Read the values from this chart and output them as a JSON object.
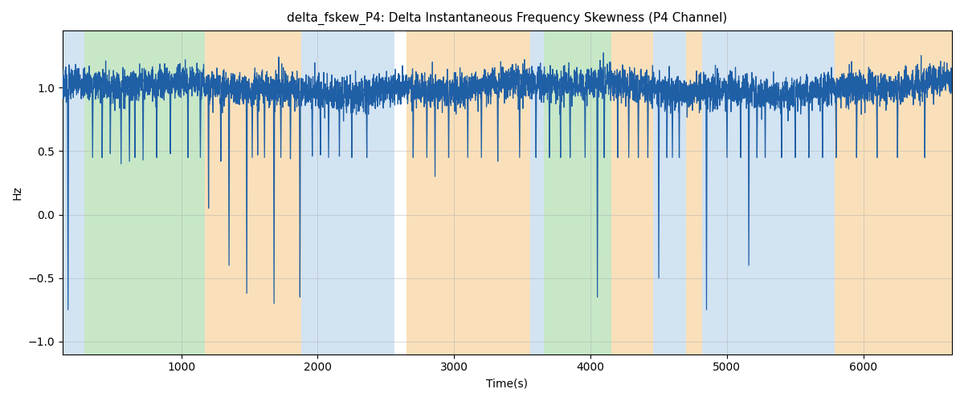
{
  "title": "delta_fskew_P4: Delta Instantaneous Frequency Skewness (P4 Channel)",
  "xlabel": "Time(s)",
  "ylabel": "Hz",
  "xlim": [
    130,
    6650
  ],
  "ylim": [
    -1.1,
    1.45
  ],
  "yticks": [
    -1.0,
    -0.5,
    0.0,
    0.5,
    1.0
  ],
  "xticks": [
    1000,
    2000,
    3000,
    4000,
    5000,
    6000
  ],
  "line_color": "#1f5fa6",
  "line_width": 0.9,
  "background_color": "#ffffff",
  "grid_color": "#aaaaaa",
  "grid_alpha": 0.5,
  "colored_regions": [
    {
      "xstart": 130,
      "xend": 290,
      "color": "#aecde8",
      "alpha": 0.55
    },
    {
      "xstart": 290,
      "xend": 1175,
      "color": "#90d090",
      "alpha": 0.5
    },
    {
      "xstart": 1175,
      "xend": 1880,
      "color": "#f5c882",
      "alpha": 0.55
    },
    {
      "xstart": 1880,
      "xend": 2565,
      "color": "#aecde8",
      "alpha": 0.55
    },
    {
      "xstart": 2650,
      "xend": 3560,
      "color": "#f5c882",
      "alpha": 0.55
    },
    {
      "xstart": 3560,
      "xend": 3660,
      "color": "#aecde8",
      "alpha": 0.55
    },
    {
      "xstart": 3660,
      "xend": 4155,
      "color": "#90d090",
      "alpha": 0.5
    },
    {
      "xstart": 4155,
      "xend": 4460,
      "color": "#f5c882",
      "alpha": 0.55
    },
    {
      "xstart": 4460,
      "xend": 4700,
      "color": "#aecde8",
      "alpha": 0.55
    },
    {
      "xstart": 4700,
      "xend": 4820,
      "color": "#f5c882",
      "alpha": 0.55
    },
    {
      "xstart": 4820,
      "xend": 5790,
      "color": "#aecde8",
      "alpha": 0.55
    },
    {
      "xstart": 5790,
      "xend": 6650,
      "color": "#f5c882",
      "alpha": 0.55
    }
  ],
  "seed": 7,
  "base_value": 1.0,
  "noise_std": 0.065,
  "spikes": [
    {
      "t": 170,
      "depth": 1.75
    },
    {
      "t": 350,
      "depth": 0.55
    },
    {
      "t": 420,
      "depth": 0.55
    },
    {
      "t": 480,
      "depth": 0.52
    },
    {
      "t": 560,
      "depth": 0.6
    },
    {
      "t": 620,
      "depth": 0.58
    },
    {
      "t": 660,
      "depth": 0.55
    },
    {
      "t": 720,
      "depth": 0.57
    },
    {
      "t": 820,
      "depth": 0.55
    },
    {
      "t": 920,
      "depth": 0.52
    },
    {
      "t": 1050,
      "depth": 0.55
    },
    {
      "t": 1140,
      "depth": 0.55
    },
    {
      "t": 1200,
      "depth": 0.95
    },
    {
      "t": 1290,
      "depth": 0.58
    },
    {
      "t": 1350,
      "depth": 1.4
    },
    {
      "t": 1480,
      "depth": 1.62
    },
    {
      "t": 1520,
      "depth": 0.55
    },
    {
      "t": 1560,
      "depth": 0.53
    },
    {
      "t": 1610,
      "depth": 0.55
    },
    {
      "t": 1680,
      "depth": 1.7
    },
    {
      "t": 1730,
      "depth": 0.55
    },
    {
      "t": 1800,
      "depth": 0.56
    },
    {
      "t": 1870,
      "depth": 1.65
    },
    {
      "t": 1960,
      "depth": 0.54
    },
    {
      "t": 2020,
      "depth": 0.53
    },
    {
      "t": 2080,
      "depth": 0.55
    },
    {
      "t": 2160,
      "depth": 0.54
    },
    {
      "t": 2250,
      "depth": 0.55
    },
    {
      "t": 2360,
      "depth": 0.55
    },
    {
      "t": 2700,
      "depth": 0.55
    },
    {
      "t": 2800,
      "depth": 0.55
    },
    {
      "t": 2860,
      "depth": 0.7
    },
    {
      "t": 2960,
      "depth": 0.55
    },
    {
      "t": 3100,
      "depth": 0.55
    },
    {
      "t": 3200,
      "depth": 0.55
    },
    {
      "t": 3320,
      "depth": 0.58
    },
    {
      "t": 3480,
      "depth": 0.55
    },
    {
      "t": 3600,
      "depth": 0.55
    },
    {
      "t": 3700,
      "depth": 0.55
    },
    {
      "t": 3780,
      "depth": 0.55
    },
    {
      "t": 3850,
      "depth": 0.55
    },
    {
      "t": 3960,
      "depth": 0.55
    },
    {
      "t": 4050,
      "depth": 1.65
    },
    {
      "t": 4100,
      "depth": 0.55
    },
    {
      "t": 4200,
      "depth": 0.55
    },
    {
      "t": 4280,
      "depth": 0.55
    },
    {
      "t": 4350,
      "depth": 0.55
    },
    {
      "t": 4420,
      "depth": 0.55
    },
    {
      "t": 4500,
      "depth": 1.5
    },
    {
      "t": 4560,
      "depth": 0.55
    },
    {
      "t": 4600,
      "depth": 0.55
    },
    {
      "t": 4650,
      "depth": 0.55
    },
    {
      "t": 4850,
      "depth": 1.75
    },
    {
      "t": 5000,
      "depth": 0.55
    },
    {
      "t": 5100,
      "depth": 0.55
    },
    {
      "t": 5160,
      "depth": 1.4
    },
    {
      "t": 5220,
      "depth": 0.55
    },
    {
      "t": 5280,
      "depth": 0.55
    },
    {
      "t": 5400,
      "depth": 0.55
    },
    {
      "t": 5500,
      "depth": 0.55
    },
    {
      "t": 5600,
      "depth": 0.55
    },
    {
      "t": 5700,
      "depth": 0.55
    },
    {
      "t": 5800,
      "depth": 0.55
    },
    {
      "t": 5950,
      "depth": 0.55
    },
    {
      "t": 6100,
      "depth": 0.55
    },
    {
      "t": 6250,
      "depth": 0.55
    },
    {
      "t": 6450,
      "depth": 0.55
    }
  ]
}
